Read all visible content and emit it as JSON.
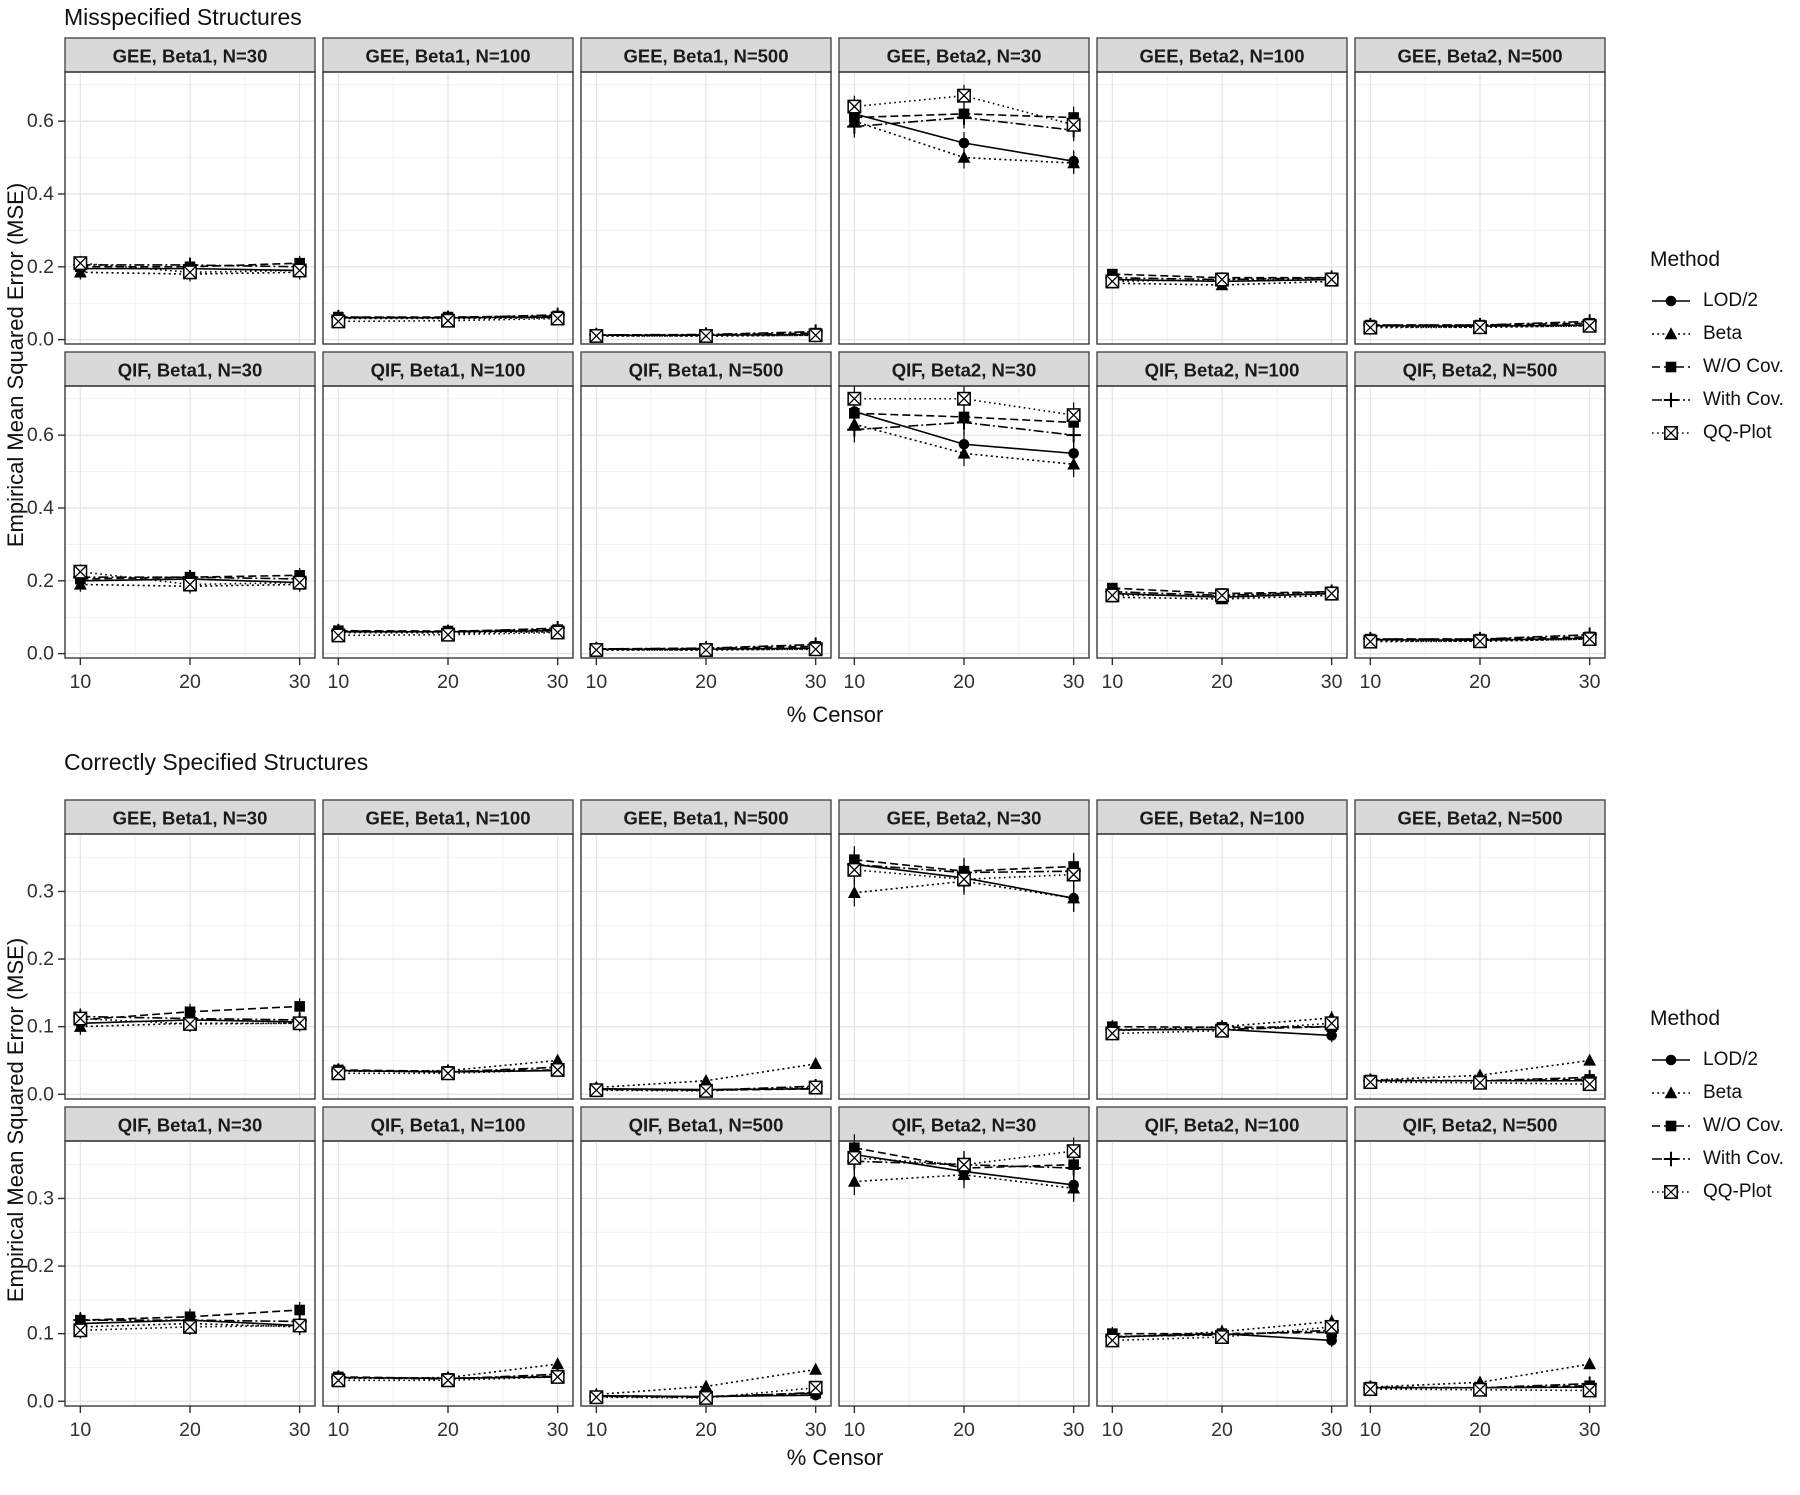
{
  "chart_data": {
    "methods": [
      {
        "name": "LOD/2",
        "marker": "circle",
        "dash": "solid"
      },
      {
        "name": "Beta",
        "marker": "triangle",
        "dash": "dotted"
      },
      {
        "name": "W/O Cov.",
        "marker": "square",
        "dash": "dashed"
      },
      {
        "name": "With Cov.",
        "marker": "plus",
        "dash": "dashdot"
      },
      {
        "name": "QQ-Plot",
        "marker": "square-x",
        "dash": "fine-dotted"
      }
    ],
    "figures": [
      {
        "type": "line",
        "title": "Misspecified Structures",
        "xlabel": "% Censor",
        "ylabel": "Empirical Mean Squared Error (MSE)",
        "legend_title": "Method",
        "x": [
          10,
          20,
          30
        ],
        "x_ticks": [
          10,
          20,
          30
        ],
        "y_ticks": [
          0.0,
          0.2,
          0.4,
          0.6
        ],
        "ylim": [
          -0.012,
          0.735
        ],
        "grid": true,
        "legend_position": "right",
        "facets": [
          {
            "label": "GEE, Beta1, N=30",
            "err": 0.02,
            "series": [
              [
                0.195,
                0.195,
                0.19
              ],
              [
                0.185,
                0.18,
                0.185
              ],
              [
                0.2,
                0.2,
                0.21
              ],
              [
                0.205,
                0.205,
                0.2
              ],
              [
                0.21,
                0.185,
                0.19
              ]
            ]
          },
          {
            "label": "GEE, Beta1, N=100",
            "err": 0.008,
            "series": [
              [
                0.06,
                0.06,
                0.062
              ],
              [
                0.058,
                0.058,
                0.06
              ],
              [
                0.062,
                0.062,
                0.065
              ],
              [
                0.062,
                0.06,
                0.068
              ],
              [
                0.05,
                0.052,
                0.058
              ]
            ]
          },
          {
            "label": "GEE, Beta1, N=500",
            "err": 0.004,
            "series": [
              [
                0.012,
                0.012,
                0.014
              ],
              [
                0.01,
                0.01,
                0.012
              ],
              [
                0.013,
                0.013,
                0.018
              ],
              [
                0.013,
                0.014,
                0.022
              ],
              [
                0.01,
                0.01,
                0.012
              ]
            ]
          },
          {
            "label": "GEE, Beta2, N=30",
            "err": 0.03,
            "series": [
              [
                0.62,
                0.54,
                0.49
              ],
              [
                0.6,
                0.5,
                0.485
              ],
              [
                0.61,
                0.62,
                0.61
              ],
              [
                0.585,
                0.61,
                0.575
              ],
              [
                0.64,
                0.67,
                0.59
              ]
            ]
          },
          {
            "label": "GEE, Beta2, N=100",
            "err": 0.012,
            "series": [
              [
                0.165,
                0.16,
                0.165
              ],
              [
                0.155,
                0.15,
                0.16
              ],
              [
                0.18,
                0.17,
                0.17
              ],
              [
                0.17,
                0.165,
                0.17
              ],
              [
                0.16,
                0.165,
                0.165
              ]
            ]
          },
          {
            "label": "GEE, Beta2, N=500",
            "err": 0.006,
            "series": [
              [
                0.038,
                0.037,
                0.04
              ],
              [
                0.035,
                0.034,
                0.038
              ],
              [
                0.04,
                0.04,
                0.045
              ],
              [
                0.04,
                0.04,
                0.05
              ],
              [
                0.033,
                0.034,
                0.038
              ]
            ]
          },
          {
            "label": "QIF, Beta1, N=30",
            "err": 0.02,
            "series": [
              [
                0.2,
                0.205,
                0.195
              ],
              [
                0.19,
                0.185,
                0.19
              ],
              [
                0.205,
                0.21,
                0.215
              ],
              [
                0.21,
                0.21,
                0.205
              ],
              [
                0.225,
                0.19,
                0.195
              ]
            ]
          },
          {
            "label": "QIF, Beta1, N=100",
            "err": 0.008,
            "series": [
              [
                0.06,
                0.06,
                0.063
              ],
              [
                0.058,
                0.057,
                0.06
              ],
              [
                0.063,
                0.062,
                0.066
              ],
              [
                0.062,
                0.06,
                0.07
              ],
              [
                0.05,
                0.052,
                0.058
              ]
            ]
          },
          {
            "label": "QIF, Beta1, N=500",
            "err": 0.004,
            "series": [
              [
                0.012,
                0.012,
                0.015
              ],
              [
                0.01,
                0.01,
                0.013
              ],
              [
                0.013,
                0.014,
                0.02
              ],
              [
                0.013,
                0.015,
                0.025
              ],
              [
                0.01,
                0.01,
                0.012
              ]
            ]
          },
          {
            "label": "QIF, Beta2, N=30",
            "err": 0.035,
            "series": [
              [
                0.665,
                0.575,
                0.55
              ],
              [
                0.63,
                0.55,
                0.52
              ],
              [
                0.66,
                0.65,
                0.635
              ],
              [
                0.615,
                0.635,
                0.6
              ],
              [
                0.7,
                0.7,
                0.655
              ]
            ]
          },
          {
            "label": "QIF, Beta2, N=100",
            "err": 0.012,
            "series": [
              [
                0.165,
                0.155,
                0.165
              ],
              [
                0.155,
                0.15,
                0.16
              ],
              [
                0.18,
                0.165,
                0.17
              ],
              [
                0.17,
                0.16,
                0.17
              ],
              [
                0.16,
                0.16,
                0.165
              ]
            ]
          },
          {
            "label": "QIF, Beta2, N=500",
            "err": 0.006,
            "series": [
              [
                0.038,
                0.037,
                0.042
              ],
              [
                0.035,
                0.034,
                0.04
              ],
              [
                0.04,
                0.04,
                0.046
              ],
              [
                0.04,
                0.04,
                0.052
              ],
              [
                0.033,
                0.034,
                0.04
              ]
            ]
          }
        ]
      },
      {
        "type": "line",
        "title": "Correctly Specified Structures",
        "xlabel": "% Censor",
        "ylabel": "Empirical Mean Squared Error (MSE)",
        "legend_title": "Method",
        "x": [
          10,
          20,
          30
        ],
        "x_ticks": [
          10,
          20,
          30
        ],
        "y_ticks": [
          0.0,
          0.1,
          0.2,
          0.3
        ],
        "ylim": [
          -0.007,
          0.385
        ],
        "grid": true,
        "legend_position": "right",
        "facets": [
          {
            "label": "GEE, Beta1, N=30",
            "err": 0.012,
            "series": [
              [
                0.105,
                0.11,
                0.107
              ],
              [
                0.1,
                0.105,
                0.105
              ],
              [
                0.11,
                0.122,
                0.13
              ],
              [
                0.115,
                0.112,
                0.11
              ],
              [
                0.112,
                0.104,
                0.105
              ]
            ]
          },
          {
            "label": "GEE, Beta1, N=100",
            "err": 0.005,
            "series": [
              [
                0.035,
                0.033,
                0.035
              ],
              [
                0.034,
                0.035,
                0.05
              ],
              [
                0.036,
                0.034,
                0.036
              ],
              [
                0.035,
                0.033,
                0.04
              ],
              [
                0.031,
                0.031,
                0.036
              ]
            ]
          },
          {
            "label": "GEE, Beta1, N=500",
            "err": 0.003,
            "series": [
              [
                0.008,
                0.007,
                0.008
              ],
              [
                0.01,
                0.02,
                0.045
              ],
              [
                0.008,
                0.006,
                0.008
              ],
              [
                0.007,
                0.006,
                0.012
              ],
              [
                0.006,
                0.005,
                0.01
              ]
            ]
          },
          {
            "label": "GEE, Beta2, N=30",
            "err": 0.02,
            "series": [
              [
                0.34,
                0.32,
                0.29
              ],
              [
                0.298,
                0.315,
                0.29
              ],
              [
                0.347,
                0.33,
                0.337
              ],
              [
                0.34,
                0.328,
                0.33
              ],
              [
                0.332,
                0.318,
                0.325
              ]
            ]
          },
          {
            "label": "GEE, Beta2, N=100",
            "err": 0.01,
            "series": [
              [
                0.095,
                0.096,
                0.087
              ],
              [
                0.094,
                0.1,
                0.113
              ],
              [
                0.1,
                0.099,
                0.1
              ],
              [
                0.096,
                0.096,
                0.1
              ],
              [
                0.09,
                0.094,
                0.105
              ]
            ]
          },
          {
            "label": "GEE, Beta2, N=500",
            "err": 0.004,
            "series": [
              [
                0.02,
                0.02,
                0.02
              ],
              [
                0.021,
                0.028,
                0.05
              ],
              [
                0.021,
                0.02,
                0.022
              ],
              [
                0.02,
                0.02,
                0.025
              ],
              [
                0.018,
                0.017,
                0.015
              ]
            ]
          },
          {
            "label": "QIF, Beta1, N=30",
            "err": 0.012,
            "series": [
              [
                0.115,
                0.12,
                0.112
              ],
              [
                0.11,
                0.115,
                0.11
              ],
              [
                0.12,
                0.125,
                0.135
              ],
              [
                0.12,
                0.12,
                0.118
              ],
              [
                0.105,
                0.11,
                0.112
              ]
            ]
          },
          {
            "label": "QIF, Beta1, N=100",
            "err": 0.005,
            "series": [
              [
                0.035,
                0.034,
                0.036
              ],
              [
                0.034,
                0.035,
                0.055
              ],
              [
                0.036,
                0.034,
                0.037
              ],
              [
                0.035,
                0.033,
                0.04
              ],
              [
                0.031,
                0.031,
                0.036
              ]
            ]
          },
          {
            "label": "QIF, Beta1, N=500",
            "err": 0.003,
            "series": [
              [
                0.008,
                0.007,
                0.009
              ],
              [
                0.01,
                0.022,
                0.047
              ],
              [
                0.008,
                0.007,
                0.012
              ],
              [
                0.007,
                0.006,
                0.013
              ],
              [
                0.006,
                0.005,
                0.02
              ]
            ]
          },
          {
            "label": "QIF, Beta2, N=30",
            "err": 0.02,
            "series": [
              [
                0.365,
                0.34,
                0.32
              ],
              [
                0.325,
                0.335,
                0.315
              ],
              [
                0.375,
                0.345,
                0.35
              ],
              [
                0.355,
                0.35,
                0.345
              ],
              [
                0.36,
                0.35,
                0.37
              ]
            ]
          },
          {
            "label": "QIF, Beta2, N=100",
            "err": 0.01,
            "series": [
              [
                0.095,
                0.1,
                0.09
              ],
              [
                0.094,
                0.103,
                0.118
              ],
              [
                0.1,
                0.1,
                0.102
              ],
              [
                0.096,
                0.098,
                0.105
              ],
              [
                0.09,
                0.095,
                0.11
              ]
            ]
          },
          {
            "label": "QIF, Beta2, N=500",
            "err": 0.004,
            "series": [
              [
                0.02,
                0.02,
                0.021
              ],
              [
                0.021,
                0.028,
                0.055
              ],
              [
                0.021,
                0.02,
                0.023
              ],
              [
                0.02,
                0.02,
                0.026
              ],
              [
                0.018,
                0.017,
                0.016
              ]
            ]
          }
        ]
      }
    ],
    "colors": {
      "foreground": "#000000",
      "strip_fill": "#d9d9d9",
      "strip_border": "#4a4a4a",
      "panel_border": "#383838",
      "grid_major": "#e4e4e4",
      "grid_minor": "#f1f1f1",
      "tick_text": "#303030"
    }
  }
}
